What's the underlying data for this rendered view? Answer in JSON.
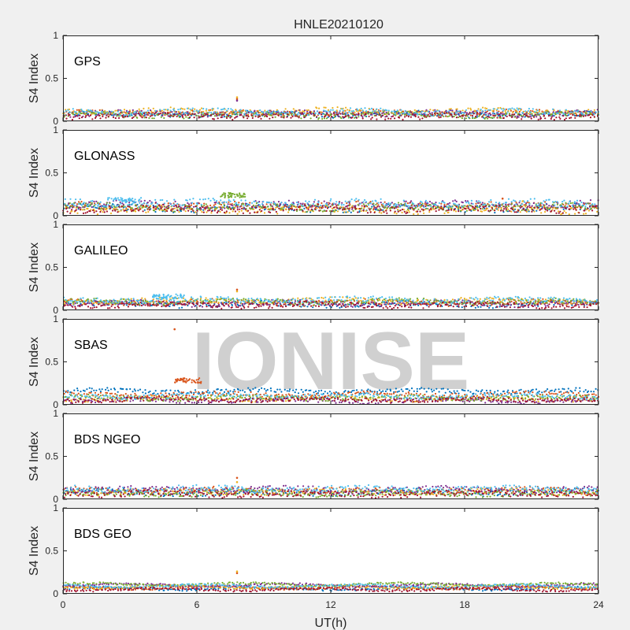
{
  "chart_data": {
    "type": "scatter",
    "title": "HNLE20210120",
    "xlabel": "UT(h)",
    "ylabel": "S4 Index",
    "xlim": [
      0,
      24
    ],
    "ylim": [
      0,
      1
    ],
    "xticks": [
      0,
      6,
      12,
      18,
      24
    ],
    "yticks": [
      0,
      0.5,
      1
    ],
    "xtick_labels": [
      "0",
      "6",
      "12",
      "18",
      "24"
    ],
    "ytick_labels": [
      "0",
      "0.5",
      "1"
    ],
    "watermark": "IONISE",
    "colors": [
      "#0072BD",
      "#D95319",
      "#EDB120",
      "#7E2F8E",
      "#77AC30",
      "#4DBEEE",
      "#A2142F"
    ],
    "panels": [
      {
        "label": "GPS",
        "baselines": [
          0.08,
          0.1,
          0.12,
          0.09,
          0.07,
          0.11,
          0.06
        ],
        "spread": 0.03,
        "highlights": [
          [
            7.8,
            0.26
          ],
          [
            7.8,
            0.28
          ],
          [
            7.8,
            0.24
          ]
        ],
        "bumps": []
      },
      {
        "label": "GLONASS",
        "baselines": [
          0.09,
          0.12,
          0.07,
          0.13,
          0.1,
          0.15,
          0.08
        ],
        "spread": 0.04,
        "highlights": [
          [
            19.7,
            0.2
          ],
          [
            20.6,
            0.17
          ]
        ],
        "bumps": [
          {
            "x0": 7.0,
            "x1": 8.2,
            "y": 0.24,
            "color": 4
          },
          {
            "x0": 2.0,
            "x1": 3.5,
            "y": 0.18,
            "color": 5
          }
        ]
      },
      {
        "label": "GALILEO",
        "baselines": [
          0.07,
          0.09,
          0.11,
          0.08,
          0.1,
          0.12,
          0.06
        ],
        "spread": 0.03,
        "highlights": [
          [
            7.8,
            0.24
          ],
          [
            7.8,
            0.22
          ]
        ],
        "bumps": [
          {
            "x0": 4.0,
            "x1": 5.5,
            "y": 0.16,
            "color": 5
          }
        ]
      },
      {
        "label": "SBAS",
        "baselines": [
          0.16,
          0.12,
          0.07,
          0.05,
          0.08,
          0.1,
          0.06
        ],
        "spread": 0.025,
        "highlights": [
          [
            5.0,
            0.88
          ]
        ],
        "bumps": [
          {
            "x0": 5.0,
            "x1": 6.2,
            "y": 0.28,
            "color": 1
          }
        ]
      },
      {
        "label": "BDS NGEO",
        "baselines": [
          0.08,
          0.1,
          0.09,
          0.11,
          0.07,
          0.12,
          0.06
        ],
        "spread": 0.035,
        "highlights": [
          [
            7.8,
            0.25
          ],
          [
            7.8,
            0.2
          ]
        ],
        "bumps": []
      },
      {
        "label": "BDS GEO",
        "baselines": [
          0.06,
          0.07,
          0.08,
          0.1,
          0.11,
          0.09,
          0.05
        ],
        "spread": 0.012,
        "highlights": [
          [
            7.8,
            0.24
          ],
          [
            7.8,
            0.26
          ]
        ],
        "bumps": []
      }
    ]
  }
}
